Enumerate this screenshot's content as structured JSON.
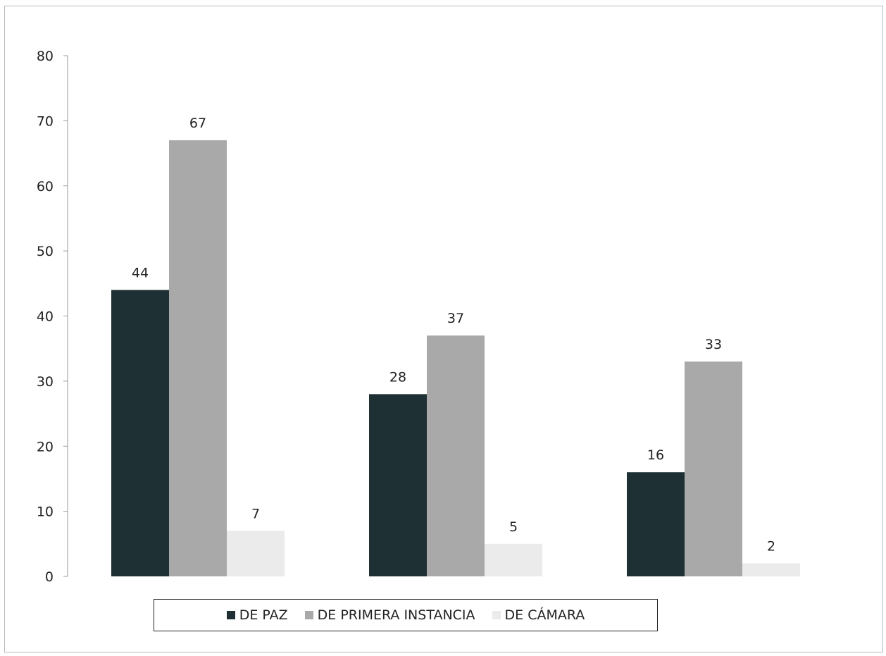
{
  "chart_data": {
    "type": "bar",
    "title": "",
    "xlabel": "",
    "ylabel": "",
    "ylim": [
      0,
      80
    ],
    "yticks": [
      0,
      10,
      20,
      30,
      40,
      50,
      60,
      70,
      80
    ],
    "categories": [
      "",
      "",
      ""
    ],
    "grid": false,
    "legend_position": "bottom",
    "series": [
      {
        "name": "DE PAZ",
        "color": "#1e3034",
        "values": [
          44,
          28,
          16
        ]
      },
      {
        "name": "DE PRIMERA INSTANCIA",
        "color": "#a9a9a9",
        "values": [
          67,
          37,
          33
        ]
      },
      {
        "name": "DE CÁMARA",
        "color": "#ebebeb",
        "values": [
          7,
          5,
          2
        ]
      }
    ]
  }
}
